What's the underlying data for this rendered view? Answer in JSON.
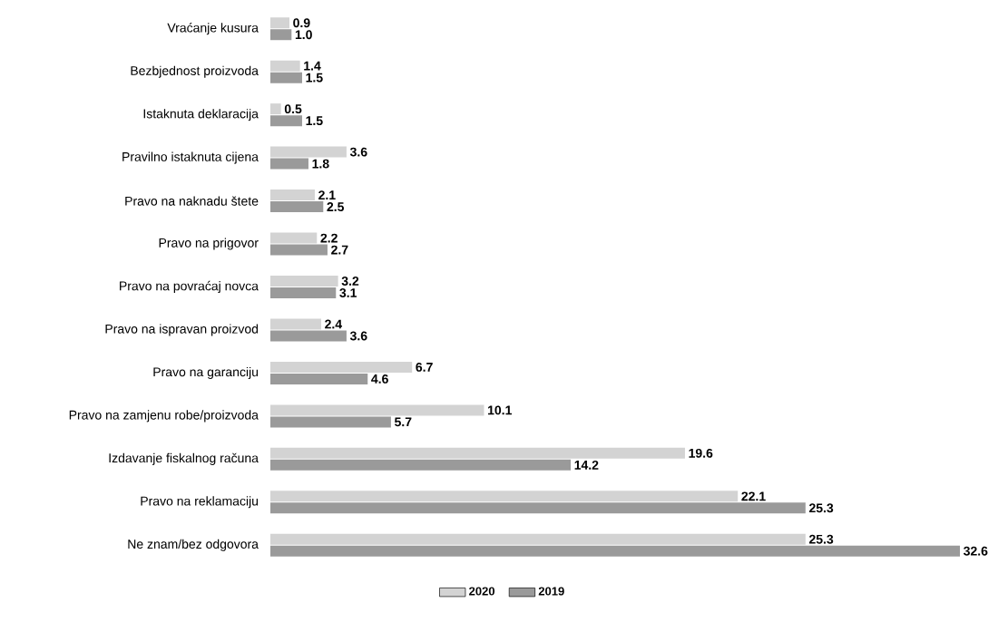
{
  "chart_data": {
    "type": "bar",
    "orientation": "horizontal",
    "categories": [
      "Vraćanje kusura",
      "Bezbjednost proizvoda",
      "Istaknuta deklaracija",
      "Pravilno istaknuta cijena",
      "Pravo na naknadu štete",
      "Pravo na prigovor",
      "Pravo na povraćaj novca",
      "Pravo na ispravan proizvod",
      "Pravo na garanciju",
      "Pravo na zamjenu robe/proizvoda",
      "Izdavanje fiskalnog računa",
      "Pravo na reklamaciju",
      "Ne znam/bez odgovora"
    ],
    "series": [
      {
        "name": "2020",
        "color": "#d3d3d3",
        "values": [
          0.9,
          1.4,
          0.5,
          3.6,
          2.1,
          2.2,
          3.2,
          2.4,
          6.7,
          10.1,
          19.6,
          22.1,
          25.3
        ],
        "value_labels": [
          "0.9",
          "1.4",
          "0.5",
          "3.6",
          "2.1",
          "2.2",
          "3.2",
          "2.4",
          "6.7",
          "10.1",
          "19.6",
          "22.1",
          "25.3"
        ]
      },
      {
        "name": "2019",
        "color": "#9a9a9a",
        "values": [
          1.0,
          1.5,
          1.5,
          1.8,
          2.5,
          2.7,
          3.1,
          3.6,
          4.6,
          5.7,
          14.2,
          25.3,
          32.6
        ],
        "value_labels": [
          "1.0",
          "1.5",
          "1.5",
          "1.8",
          "2.5",
          "2.7",
          "3.1",
          "3.6",
          "4.6",
          "5.7",
          "14.2",
          "25.3",
          "32.6"
        ]
      }
    ],
    "legend": "bottom"
  }
}
